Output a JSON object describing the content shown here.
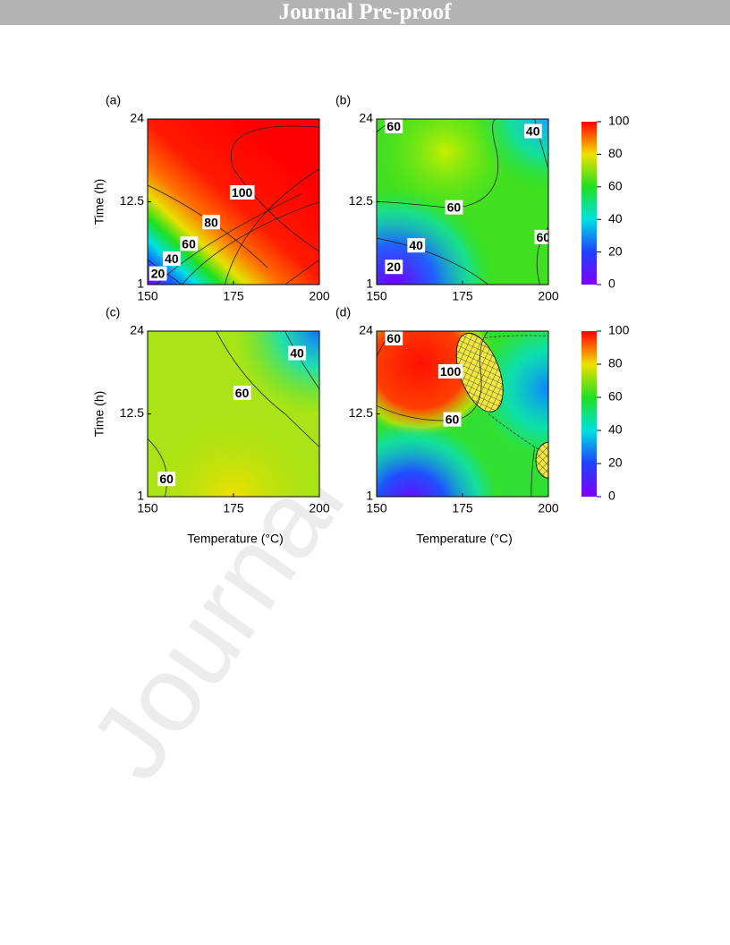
{
  "header": "Journal Pre-proof",
  "watermark": "Journal",
  "figure": {
    "y_axis_title": "Time (h)",
    "x_axis_title": "Temperature (°C)",
    "colorbar": {
      "lim": [
        0,
        100
      ],
      "ticks": [
        0,
        20,
        40,
        60,
        80,
        100
      ]
    },
    "panels": [
      {
        "label": "(a)",
        "xlim": [
          150,
          200
        ],
        "ylim": [
          1,
          24
        ],
        "xticks": [
          150,
          175,
          200
        ],
        "yticks": [
          1,
          12.5,
          24
        ],
        "contour_labels": [
          100,
          80,
          60,
          40,
          20
        ]
      },
      {
        "label": "(b)",
        "xlim": [
          150,
          200
        ],
        "ylim": [
          1,
          24
        ],
        "xticks": [
          150,
          175,
          200
        ],
        "yticks": [
          1,
          12.5,
          24
        ],
        "contour_labels": [
          60,
          40,
          60,
          40,
          20,
          60
        ]
      },
      {
        "label": "(c)",
        "xlim": [
          150,
          200
        ],
        "ylim": [
          1,
          24
        ],
        "xticks": [
          150,
          175,
          200
        ],
        "yticks": [
          1,
          12.5,
          24
        ],
        "contour_labels": [
          40,
          60,
          60
        ]
      },
      {
        "label": "(d)",
        "xlim": [
          150,
          200
        ],
        "ylim": [
          1,
          24
        ],
        "xticks": [
          150,
          175,
          200
        ],
        "yticks": [
          1,
          12.5,
          24
        ],
        "contour_labels": [
          60,
          100,
          60
        ]
      }
    ]
  }
}
